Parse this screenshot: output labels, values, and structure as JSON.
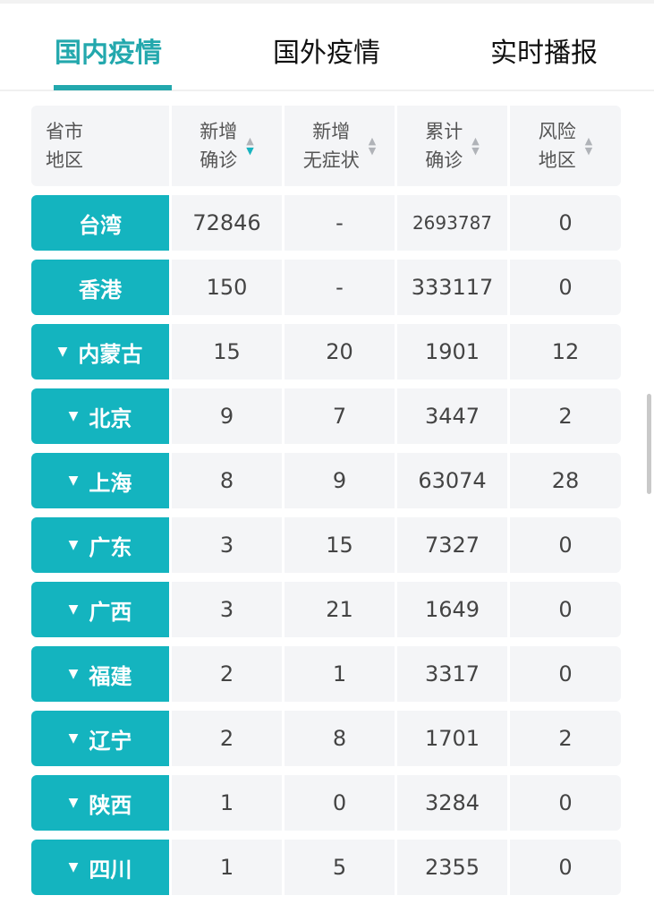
{
  "tabs": [
    {
      "label": "国内疫情",
      "active": true
    },
    {
      "label": "国外疫情",
      "active": false
    },
    {
      "label": "实时播报",
      "active": false
    }
  ],
  "colors": {
    "accent": "#23a8ad",
    "province_cell": "#14b4bf",
    "cell_bg": "#f4f5f7"
  },
  "table": {
    "headers": [
      {
        "line1": "省市",
        "line2": "地区"
      },
      {
        "line1": "新增",
        "line2": "确诊",
        "sort": "descending",
        "sort_icon": "sort-up-down-icon"
      },
      {
        "line1": "新增",
        "line2": "无症状",
        "sort_icon": "sort-up-down-icon"
      },
      {
        "line1": "累计",
        "line2": "确诊",
        "sort_icon": "sort-up-down-icon"
      },
      {
        "line1": "风险",
        "line2": "地区",
        "sort_icon": "sort-up-down-icon"
      }
    ],
    "rows": [
      {
        "name": "台湾",
        "expandable": false,
        "new_confirmed": "72846",
        "new_asymptomatic": "-",
        "total_confirmed": "2693787",
        "risk_areas": "0"
      },
      {
        "name": "香港",
        "expandable": false,
        "new_confirmed": "150",
        "new_asymptomatic": "-",
        "total_confirmed": "333117",
        "risk_areas": "0"
      },
      {
        "name": "内蒙古",
        "expandable": true,
        "new_confirmed": "15",
        "new_asymptomatic": "20",
        "total_confirmed": "1901",
        "risk_areas": "12"
      },
      {
        "name": "北京",
        "expandable": true,
        "new_confirmed": "9",
        "new_asymptomatic": "7",
        "total_confirmed": "3447",
        "risk_areas": "2"
      },
      {
        "name": "上海",
        "expandable": true,
        "new_confirmed": "8",
        "new_asymptomatic": "9",
        "total_confirmed": "63074",
        "risk_areas": "28"
      },
      {
        "name": "广东",
        "expandable": true,
        "new_confirmed": "3",
        "new_asymptomatic": "15",
        "total_confirmed": "7327",
        "risk_areas": "0"
      },
      {
        "name": "广西",
        "expandable": true,
        "new_confirmed": "3",
        "new_asymptomatic": "21",
        "total_confirmed": "1649",
        "risk_areas": "0"
      },
      {
        "name": "福建",
        "expandable": true,
        "new_confirmed": "2",
        "new_asymptomatic": "1",
        "total_confirmed": "3317",
        "risk_areas": "0"
      },
      {
        "name": "辽宁",
        "expandable": true,
        "new_confirmed": "2",
        "new_asymptomatic": "8",
        "total_confirmed": "1701",
        "risk_areas": "2"
      },
      {
        "name": "陕西",
        "expandable": true,
        "new_confirmed": "1",
        "new_asymptomatic": "0",
        "total_confirmed": "3284",
        "risk_areas": "0"
      },
      {
        "name": "四川",
        "expandable": true,
        "new_confirmed": "1",
        "new_asymptomatic": "5",
        "total_confirmed": "2355",
        "risk_areas": "0"
      }
    ]
  }
}
